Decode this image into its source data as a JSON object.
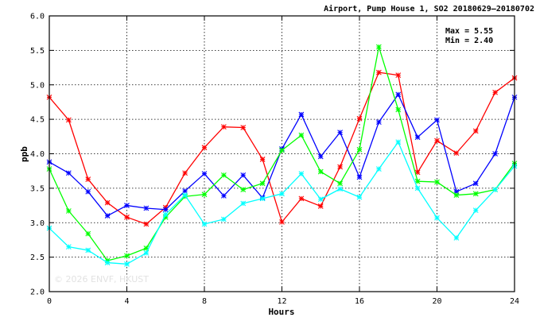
{
  "chart_data": {
    "type": "line",
    "title": "Airport, Pump House 1, SO2 20180629—20180702",
    "xlabel": "Hours",
    "ylabel": "ppb",
    "xlim": [
      0,
      24
    ],
    "ylim": [
      2.0,
      6.0
    ],
    "x_ticks": [
      0,
      4,
      8,
      12,
      16,
      20,
      24
    ],
    "y_ticks": [
      "2.0",
      "2.5",
      "3.0",
      "3.5",
      "4.0",
      "4.5",
      "5.0",
      "5.5",
      "6.0"
    ],
    "grid": true,
    "x": [
      0,
      1,
      2,
      3,
      4,
      5,
      6,
      7,
      8,
      9,
      10,
      11,
      12,
      13,
      14,
      15,
      16,
      17,
      18,
      19,
      20,
      21,
      22,
      23,
      24
    ],
    "annotations": {
      "max": "Max = 5.55",
      "min": "Min = 2.40",
      "watermark": "© 2026 ENVF, HKUST"
    },
    "series": [
      {
        "color": "#ff0000",
        "values": [
          4.82,
          4.49,
          3.63,
          3.29,
          3.08,
          2.98,
          3.22,
          3.72,
          4.09,
          4.39,
          4.38,
          3.92,
          3.01,
          3.35,
          3.24,
          3.81,
          4.51,
          5.18,
          5.14,
          3.73,
          4.19,
          4.01,
          4.33,
          4.89,
          5.1
        ]
      },
      {
        "color": "#0000ff",
        "values": [
          3.88,
          3.72,
          3.45,
          3.1,
          3.25,
          3.21,
          3.19,
          3.46,
          3.71,
          3.39,
          3.69,
          3.36,
          4.07,
          4.57,
          3.96,
          4.31,
          3.66,
          4.46,
          4.86,
          4.24,
          4.49,
          3.45,
          3.57,
          4.0,
          4.82
        ]
      },
      {
        "color": "#00ff00",
        "values": [
          3.78,
          3.17,
          2.84,
          2.45,
          2.52,
          2.63,
          3.08,
          3.38,
          3.41,
          3.69,
          3.48,
          3.57,
          4.05,
          4.27,
          3.74,
          3.57,
          4.06,
          5.55,
          4.64,
          3.6,
          3.59,
          3.4,
          3.42,
          3.48,
          3.86
        ]
      },
      {
        "color": "#00ffff",
        "values": [
          2.92,
          2.65,
          2.6,
          2.42,
          2.4,
          2.56,
          3.12,
          3.4,
          2.98,
          3.05,
          3.28,
          3.35,
          3.42,
          3.71,
          3.34,
          3.49,
          3.37,
          3.78,
          4.17,
          3.5,
          3.07,
          2.78,
          3.18,
          3.48,
          3.82
        ]
      }
    ]
  }
}
